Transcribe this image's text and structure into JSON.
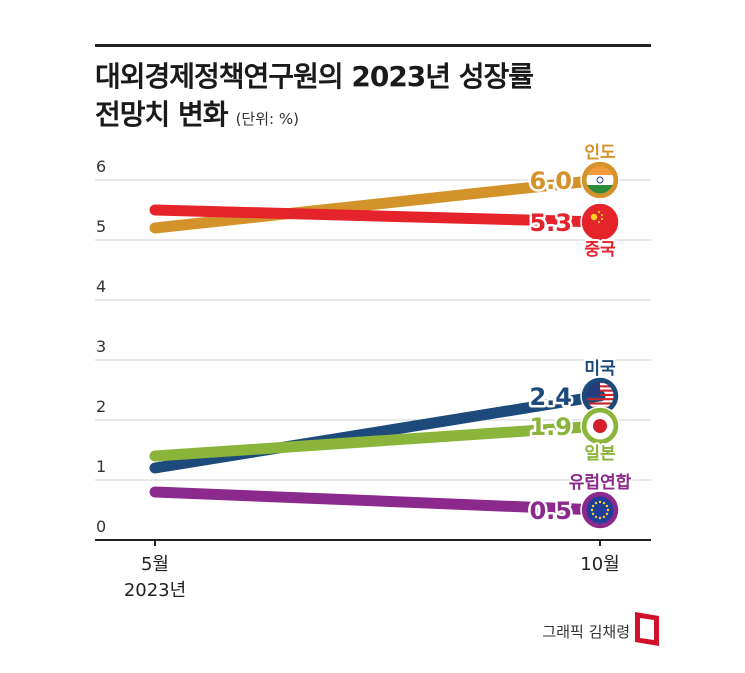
{
  "title": {
    "line1": "대외경제정책연구원의 2023년 성장률",
    "line2": "전망치 변화",
    "unit": "(단위: %)"
  },
  "credit": "그래픽 김채령",
  "chart_data": {
    "type": "line",
    "title": "대외경제정책연구원의 2023년 성장률 전망치 변화",
    "ylabel": "",
    "ylim": [
      0,
      6
    ],
    "yticks": [
      "0",
      "1",
      "2",
      "3",
      "4",
      "5",
      "6"
    ],
    "x_labels": [
      {
        "month": "5월",
        "year": "2023년"
      },
      {
        "month": "10월",
        "year": ""
      }
    ],
    "series": [
      {
        "name": "인도",
        "color": "#d4922a",
        "values": [
          5.2,
          6.0
        ],
        "end_label": "6.0",
        "icon": "india-flag-icon"
      },
      {
        "name": "중국",
        "color": "#e4232b",
        "values": [
          5.5,
          5.3
        ],
        "end_label": "5.3",
        "icon": "china-flag-icon"
      },
      {
        "name": "미국",
        "color": "#1c4a7a",
        "values": [
          1.2,
          2.4
        ],
        "end_label": "2.4",
        "icon": "usa-flag-icon"
      },
      {
        "name": "일본",
        "color": "#8ab43a",
        "values": [
          1.4,
          1.9
        ],
        "end_label": "1.9",
        "icon": "japan-flag-icon"
      },
      {
        "name": "유럽연합",
        "color": "#8b2a8c",
        "values": [
          0.8,
          0.5
        ],
        "end_label": "0.5",
        "icon": "eu-flag-icon"
      }
    ]
  }
}
